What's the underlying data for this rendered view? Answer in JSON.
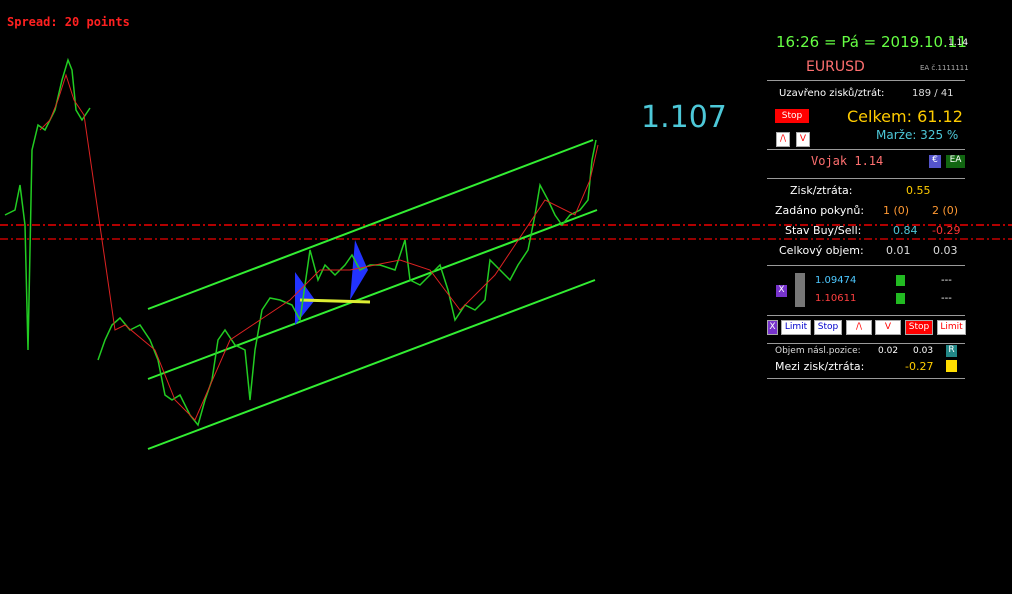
{
  "chart": {
    "spread": "Spread: 20 points",
    "price": "1.107"
  },
  "header": {
    "datetime": "16:26 = Pá = 2019.10.11",
    "version": "1.14",
    "symbol": "EURUSD",
    "ea": "EA č.1111111"
  },
  "summary": {
    "closed_label": "Uzavřeno zisků/ztrát:",
    "closed_value": "189 / 41",
    "stop_button": "Stop",
    "total": "Celkem: 61.12",
    "margin": "Marže: 325 %",
    "buy_button": "/\\",
    "sell_button": "V"
  },
  "expert": {
    "name": "Vojak 1.14",
    "euro_icon": "€",
    "ea_icon": "EA"
  },
  "stats": {
    "rows": [
      [
        "Zisk/ztráta:",
        "0.55"
      ],
      [
        "Zadáno pokynů:",
        "1 (0)",
        "2 (0)"
      ],
      [
        "Stav Buy/Sell:",
        "0.84",
        "-0.29"
      ],
      [
        "Celkový objem:",
        "0.01",
        "0.03"
      ]
    ]
  },
  "levels": {
    "close": "X",
    "rows": [
      [
        "1.09474",
        "---"
      ],
      [
        "1.10611",
        "---"
      ]
    ]
  },
  "buttons": [
    "X",
    "Limit",
    "Stop",
    "/\\",
    "V",
    "Stop",
    "Limit"
  ],
  "next": {
    "volume_label": "Objem násl.pozice:",
    "volume_buy": "0.02",
    "volume_sell": "0.03",
    "reset": "R",
    "mid_label": "Mezi zisk/ztráta:",
    "mid_value": "-0.27"
  }
}
